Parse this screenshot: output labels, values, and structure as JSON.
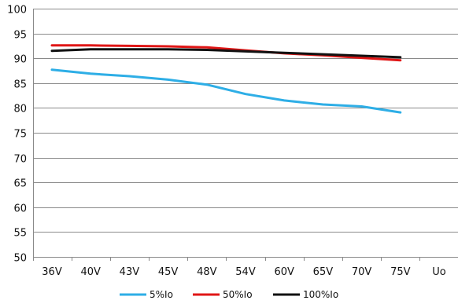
{
  "chart_data": {
    "type": "line",
    "title": "",
    "xlabel": "",
    "ylabel": "",
    "categories": [
      "36V",
      "40V",
      "43V",
      "45V",
      "48V",
      "54V",
      "60V",
      "65V",
      "70V",
      "75V",
      "Uo"
    ],
    "ylim": [
      50,
      100
    ],
    "yticks": [
      50,
      55,
      60,
      65,
      70,
      75,
      80,
      85,
      90,
      95,
      100
    ],
    "grid": true,
    "legend": "bottom",
    "series": [
      {
        "name": "5%Io",
        "color": "#2eaee6",
        "values": [
          87.7,
          86.9,
          86.4,
          85.7,
          84.7,
          82.8,
          81.5,
          80.7,
          80.3,
          79.1,
          null
        ]
      },
      {
        "name": "50%Io",
        "color": "#e01616",
        "values": [
          92.6,
          92.6,
          92.5,
          92.4,
          92.2,
          91.6,
          91.0,
          90.6,
          90.1,
          89.6,
          null
        ]
      },
      {
        "name": "100%Io",
        "color": "#111111",
        "values": [
          91.5,
          91.8,
          91.8,
          91.8,
          91.7,
          91.4,
          91.1,
          90.8,
          90.5,
          90.2,
          null
        ]
      }
    ]
  }
}
